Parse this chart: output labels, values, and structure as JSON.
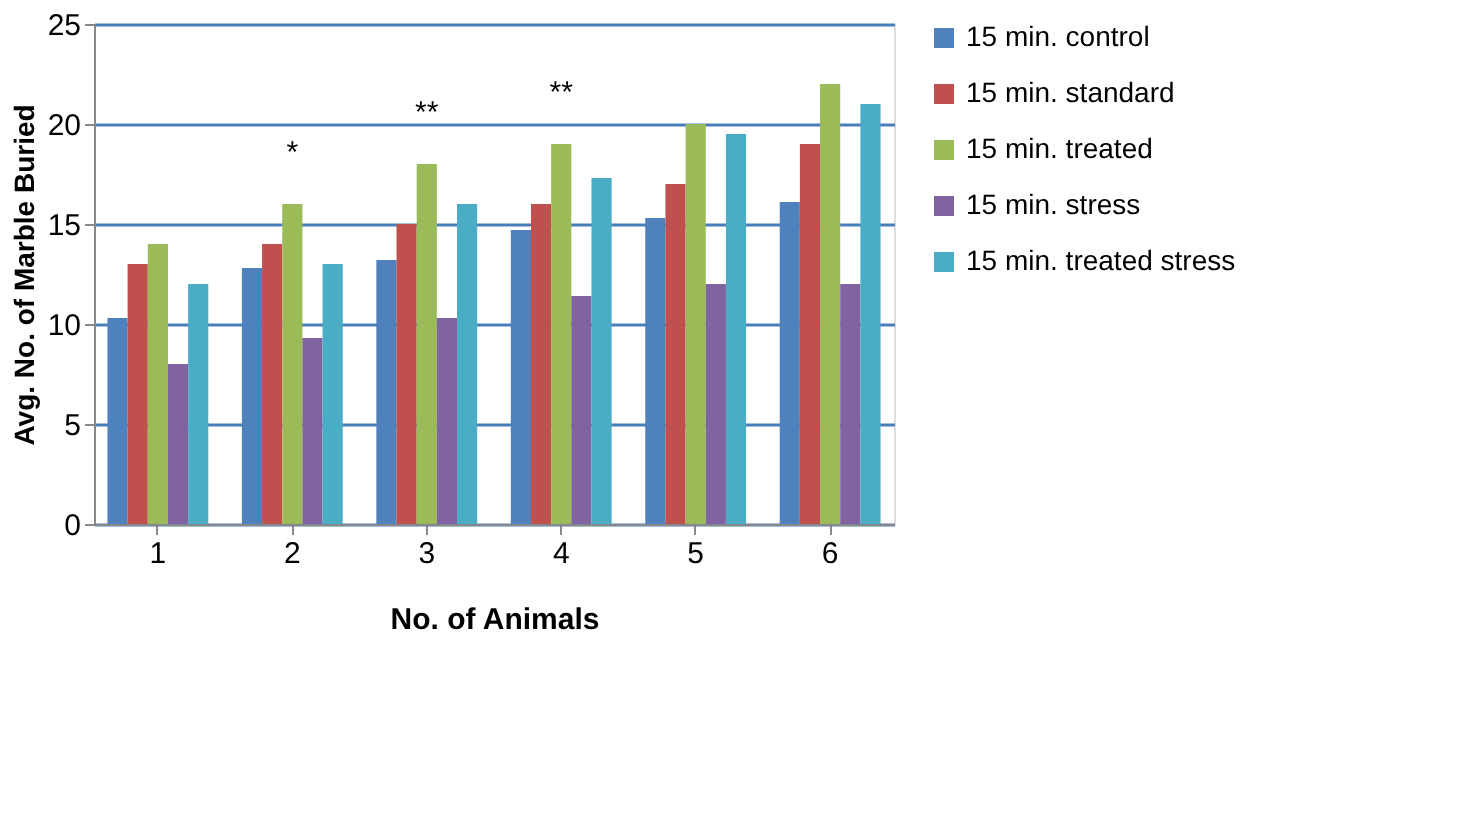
{
  "chart_data": {
    "type": "bar",
    "xlabel": "No. of Animals",
    "ylabel": "Avg. No. of Marble Buried",
    "categories": [
      "1",
      "2",
      "3",
      "4",
      "5",
      "6"
    ],
    "series": [
      {
        "name": "15 min. control",
        "color": "#4f81bd",
        "values": [
          10.3,
          12.8,
          13.2,
          14.7,
          15.3,
          16.1
        ]
      },
      {
        "name": "15 min. standard",
        "color": "#c0504d",
        "values": [
          13,
          14,
          15,
          16,
          17,
          19
        ]
      },
      {
        "name": "15 min. treated",
        "color": "#9bbb59",
        "values": [
          14,
          16,
          18,
          19,
          20,
          22
        ]
      },
      {
        "name": "15 min. stress",
        "color": "#8064a2",
        "values": [
          8,
          9.3,
          10.3,
          11.4,
          12,
          12
        ]
      },
      {
        "name": "15 min. treated stress",
        "color": "#4bacc6",
        "values": [
          12,
          13,
          16,
          17.3,
          19.5,
          21
        ]
      }
    ],
    "ylim": [
      0,
      25
    ],
    "yticks": [
      0,
      5,
      10,
      15,
      20,
      25
    ],
    "grid": "y",
    "legend": "right",
    "annotations": [
      {
        "text": "*",
        "x": "2",
        "y": 16
      },
      {
        "text": "**",
        "x": "3",
        "y": 18
      },
      {
        "text": "**",
        "x": "4",
        "y": 19
      }
    ]
  }
}
